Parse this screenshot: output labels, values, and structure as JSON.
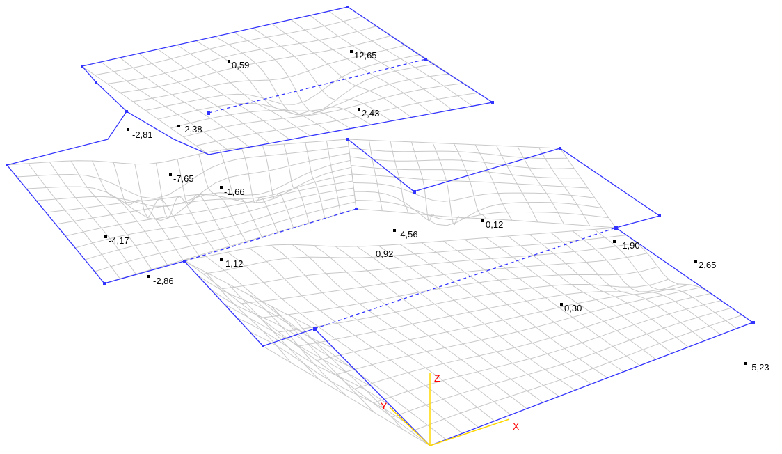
{
  "values": [
    {
      "id": "v1",
      "text": "0,59"
    },
    {
      "id": "v2",
      "text": "12,65"
    },
    {
      "id": "v3",
      "text": "2,43"
    },
    {
      "id": "v4",
      "text": "-2,81"
    },
    {
      "id": "v5",
      "text": "-2,38"
    },
    {
      "id": "v6",
      "text": "-7,65"
    },
    {
      "id": "v7",
      "text": "-1,66"
    },
    {
      "id": "v8",
      "text": "-4,17"
    },
    {
      "id": "v9",
      "text": "-2,86"
    },
    {
      "id": "v10",
      "text": "1,12"
    },
    {
      "id": "v11",
      "text": "-4,56"
    },
    {
      "id": "v12",
      "text": "0,92"
    },
    {
      "id": "v13",
      "text": "0,12"
    },
    {
      "id": "v14",
      "text": "-1,90"
    },
    {
      "id": "v15",
      "text": "2,65"
    },
    {
      "id": "v16",
      "text": "0,30"
    },
    {
      "id": "v17",
      "text": "-5,23"
    }
  ],
  "axes": {
    "x_label": "X",
    "y_label": "Y",
    "z_label": "Z",
    "x_color": "#ffd700",
    "y_color": "#ffd700",
    "z_color": "#ffd700",
    "label_color": "#ff0000"
  },
  "colors": {
    "mesh": "#c8c8c8",
    "boundary": "#3333ff",
    "marker": "#000000"
  }
}
